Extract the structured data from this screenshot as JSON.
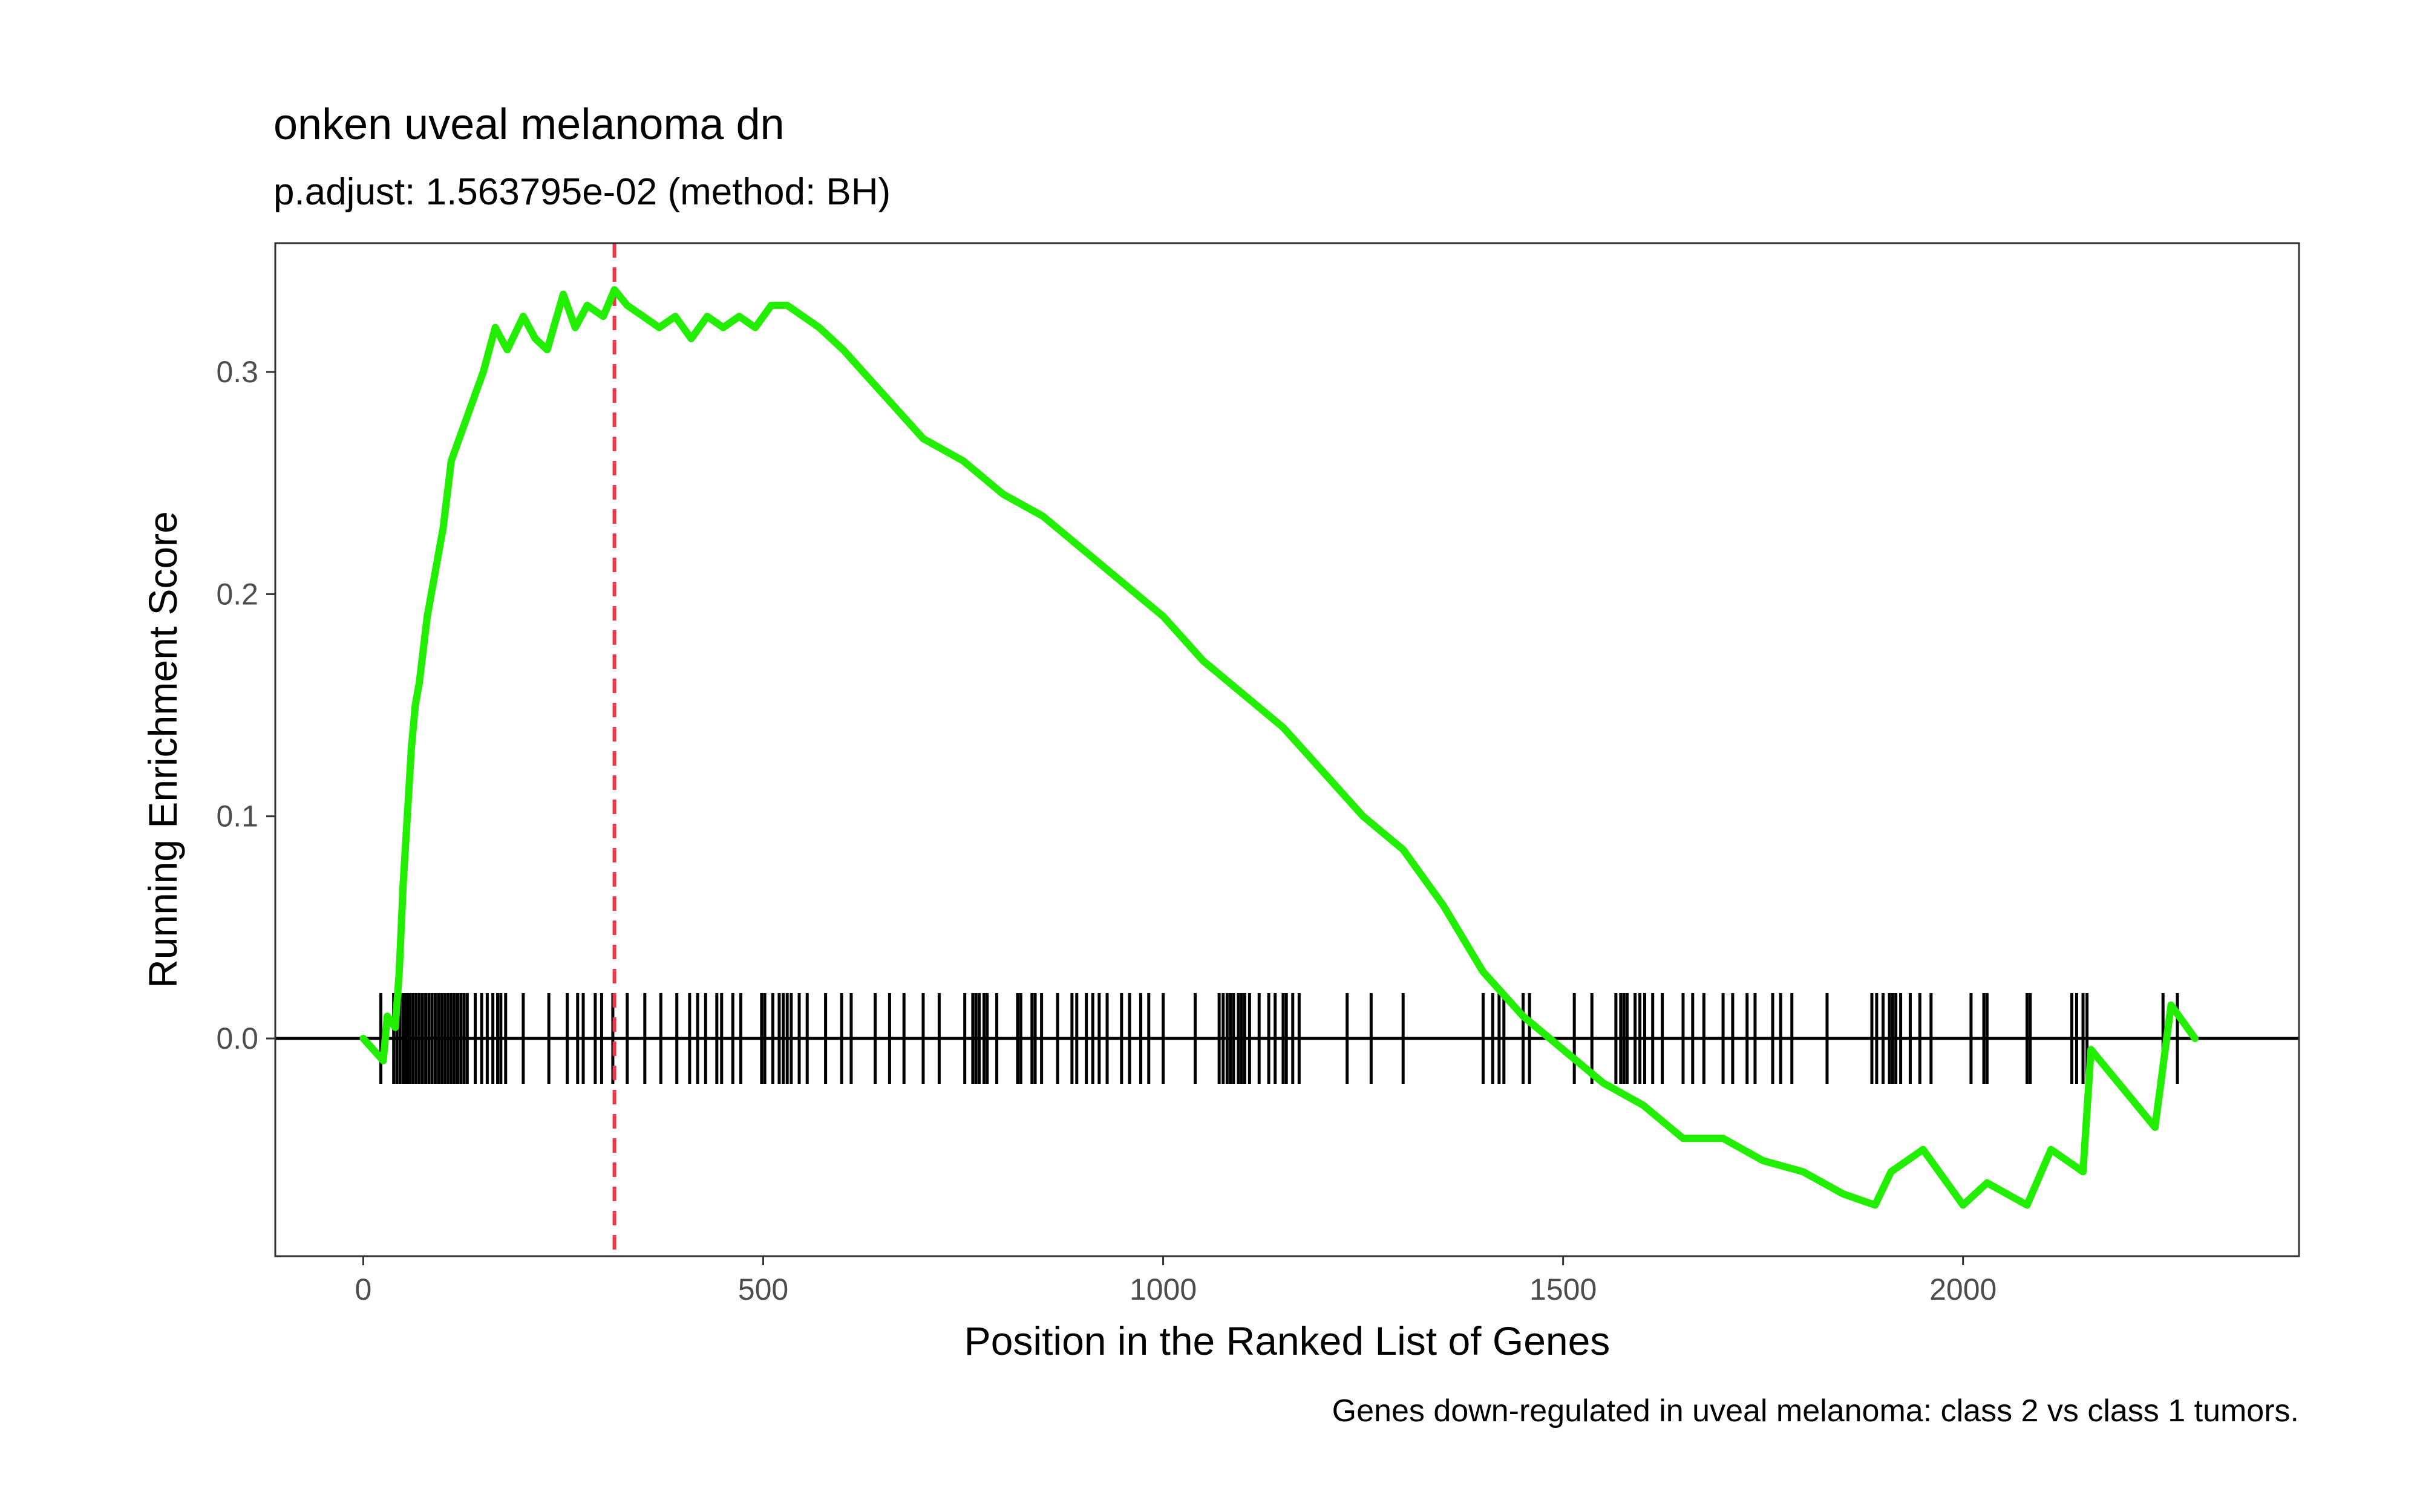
{
  "chart_data": {
    "type": "line",
    "title": "onken uveal melanoma dn",
    "subtitle": "p.adjust: 1.563795e-02 (method: BH)",
    "xlabel": "Position in the Ranked List of Genes",
    "ylabel": "Running Enrichment Score",
    "caption": "Genes down-regulated in uveal melanoma: class 2 vs class 1 tumors.",
    "xlim": [
      -110,
      2420
    ],
    "ylim": [
      -0.098,
      0.358
    ],
    "x_ticks": [
      0,
      500,
      1000,
      1500,
      2000
    ],
    "x_tick_labels": [
      "0",
      "500",
      "1000",
      "1500",
      "2000"
    ],
    "y_ticks": [
      0.0,
      0.1,
      0.2,
      0.3
    ],
    "y_tick_labels": [
      "0.0",
      "0.1",
      "0.2",
      "0.3"
    ],
    "grid": false,
    "colors": {
      "line": "#22ee00",
      "peak_line": "#f0364a",
      "zero_line": "#000000",
      "hits": "#000000",
      "frame": "#333333"
    },
    "peak_position": 314,
    "series": [
      {
        "values_x": [
          0,
          25,
          30,
          40,
          45,
          50,
          55,
          60,
          65,
          70,
          80,
          90,
          100,
          110,
          120,
          130,
          140,
          150,
          165,
          180,
          200,
          215,
          230,
          250,
          265,
          280,
          300,
          314,
          330,
          350,
          370,
          390,
          410,
          430,
          450,
          470,
          490,
          510,
          530,
          550,
          570,
          600,
          650,
          700,
          750,
          800,
          850,
          900,
          950,
          1000,
          1050,
          1100,
          1150,
          1200,
          1250,
          1300,
          1350,
          1400,
          1450,
          1500,
          1550,
          1600,
          1650,
          1700,
          1750,
          1800,
          1850,
          1890,
          1910,
          1950,
          2000,
          2030,
          2080,
          2110,
          2150,
          2160,
          2240,
          2260,
          2290
        ],
        "values_y": [
          0.0,
          -0.01,
          0.01,
          0.005,
          0.03,
          0.07,
          0.1,
          0.13,
          0.15,
          0.16,
          0.19,
          0.21,
          0.23,
          0.26,
          0.27,
          0.28,
          0.29,
          0.3,
          0.32,
          0.31,
          0.325,
          0.315,
          0.31,
          0.335,
          0.32,
          0.33,
          0.325,
          0.337,
          0.33,
          0.325,
          0.32,
          0.325,
          0.315,
          0.325,
          0.32,
          0.325,
          0.32,
          0.33,
          0.33,
          0.325,
          0.32,
          0.31,
          0.29,
          0.27,
          0.26,
          0.245,
          0.235,
          0.22,
          0.205,
          0.19,
          0.17,
          0.155,
          0.14,
          0.12,
          0.1,
          0.085,
          0.06,
          0.03,
          0.01,
          -0.005,
          -0.02,
          -0.03,
          -0.045,
          -0.045,
          -0.055,
          -0.06,
          -0.07,
          -0.075,
          -0.06,
          -0.05,
          -0.075,
          -0.065,
          -0.075,
          -0.05,
          -0.06,
          -0.005,
          -0.04,
          0.015,
          0.0
        ]
      }
    ],
    "hits": [
      22,
      38,
      42,
      46,
      50,
      52,
      55,
      58,
      62,
      66,
      70,
      74,
      78,
      82,
      86,
      90,
      94,
      98,
      102,
      106,
      110,
      114,
      118,
      122,
      126,
      130,
      140,
      148,
      155,
      162,
      168,
      172,
      178,
      200,
      232,
      255,
      268,
      275,
      290,
      298,
      312,
      330,
      352,
      372,
      392,
      408,
      418,
      428,
      442,
      448,
      462,
      472,
      498,
      502,
      512,
      520,
      525,
      530,
      535,
      545,
      555,
      578,
      598,
      610,
      640,
      658,
      676,
      700,
      720,
      752,
      762,
      766,
      770,
      776,
      780,
      792,
      818,
      822,
      836,
      840,
      848,
      868,
      886,
      892,
      904,
      912,
      920,
      930,
      948,
      958,
      972,
      982,
      1000,
      1040,
      1070,
      1075,
      1080,
      1084,
      1088,
      1094,
      1098,
      1102,
      1108,
      1120,
      1132,
      1140,
      1150,
      1154,
      1162,
      1170,
      1230,
      1260,
      1300,
      1400,
      1412,
      1420,
      1426,
      1450,
      1458,
      1514,
      1536,
      1566,
      1572,
      1576,
      1580,
      1590,
      1596,
      1602,
      1612,
      1624,
      1650,
      1662,
      1676,
      1700,
      1712,
      1730,
      1740,
      1762,
      1772,
      1786,
      1830,
      1886,
      1892,
      1900,
      1908,
      1912,
      1916,
      1922,
      1934,
      1946,
      1960,
      2010,
      2026,
      2030,
      2080,
      2084,
      2136,
      2142,
      2150,
      2155,
      2250,
      2268
    ]
  }
}
